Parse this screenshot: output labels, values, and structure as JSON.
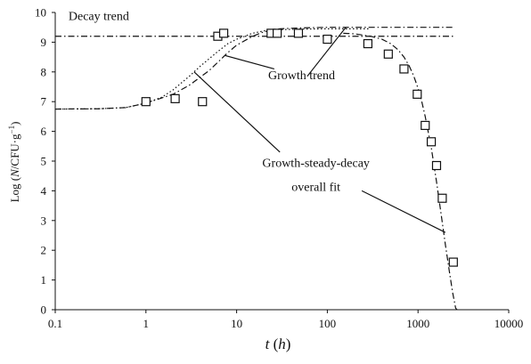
{
  "chart_data": {
    "type": "scatter",
    "x_scale": "log",
    "xlim": [
      0.1,
      10000
    ],
    "ylim": [
      0,
      10
    ],
    "grid": false,
    "x_ticks": [
      "0.1",
      "1",
      "10",
      "100",
      "1000",
      "10000"
    ],
    "y_ticks": [
      "0",
      "1",
      "2",
      "3",
      "4",
      "5",
      "6",
      "7",
      "8",
      "9",
      "10"
    ],
    "xlabel_var": "t",
    "xlabel_unit_var": "h",
    "ylabel_prefix": "Log (",
    "ylabel_var": "N",
    "ylabel_unit": "/CFU·g",
    "ylabel_exp": "−1",
    "ylabel_suffix": ")",
    "series": [
      {
        "kind": "markers",
        "marker": "open-square",
        "x": [
          1.0,
          2.1,
          4.2,
          6.2,
          7.2,
          24,
          28,
          48,
          100,
          280,
          470,
          700,
          980,
          1200,
          1400,
          1600,
          1850,
          2450
        ],
        "y": [
          7.0,
          7.1,
          7.0,
          9.2,
          9.3,
          9.3,
          9.3,
          9.3,
          9.1,
          8.95,
          8.6,
          8.1,
          7.25,
          6.2,
          5.65,
          4.85,
          3.75,
          1.6
        ]
      },
      {
        "kind": "line",
        "style": "dash-dot",
        "x": [
          0.1,
          2500
        ],
        "y": [
          9.2,
          9.2
        ]
      },
      {
        "kind": "line",
        "style": "dotted",
        "x": [
          0.1,
          0.3,
          0.6,
          1.0,
          1.5,
          2.0,
          3.0,
          4.0,
          6.0,
          8.0,
          10,
          15,
          20,
          30,
          50,
          100,
          150,
          200,
          300
        ],
        "y": [
          6.75,
          6.76,
          6.8,
          6.95,
          7.15,
          7.4,
          7.85,
          8.2,
          8.65,
          8.95,
          9.1,
          9.3,
          9.38,
          9.42,
          9.44,
          9.45,
          9.45,
          9.45,
          9.45
        ]
      },
      {
        "kind": "line",
        "style": "dash-dot",
        "x": [
          0.1,
          0.3,
          0.6,
          1.0,
          2.0,
          3.0,
          5.0,
          8.0,
          10,
          15,
          20,
          30,
          50,
          100,
          150,
          200,
          500,
          1000,
          2500
        ],
        "y": [
          6.75,
          6.76,
          6.8,
          6.95,
          7.25,
          7.55,
          8.05,
          8.65,
          8.9,
          9.2,
          9.35,
          9.45,
          9.48,
          9.5,
          9.5,
          9.5,
          9.5,
          9.5,
          9.5
        ]
      },
      {
        "kind": "line",
        "style": "dash-dot",
        "x": [
          150,
          200,
          300,
          400,
          500,
          600,
          700,
          800,
          900,
          1000,
          1100,
          1200,
          1400,
          1600,
          1800,
          2000,
          2200,
          2400,
          2600,
          2700
        ],
        "y": [
          9.3,
          9.28,
          9.2,
          9.1,
          8.95,
          8.75,
          8.5,
          8.2,
          7.85,
          7.45,
          7.0,
          6.5,
          5.45,
          4.3,
          3.2,
          2.2,
          1.35,
          0.6,
          0.05,
          0.0
        ]
      }
    ],
    "annotations": [
      {
        "name": "decay-trend",
        "text": "Decay trend",
        "at": [
          0.14,
          9.75
        ],
        "anchor": "start",
        "pointer": null
      },
      {
        "name": "growth-trend",
        "text": "Growth trend",
        "at": [
          52,
          7.75
        ],
        "anchor": "middle",
        "pointer": {
          "from": [
            26,
            8.1
          ],
          "to": [
            7.5,
            8.55
          ]
        }
      },
      {
        "name": "growth-steady-decay",
        "text": "Growth-steady-decay",
        "at": [
          75,
          4.8
        ],
        "anchor": "middle",
        "pointer": {
          "from": [
            30,
            5.3
          ],
          "to": [
            3.4,
            8.0
          ]
        }
      },
      {
        "name": "overall-fit",
        "text": "overall fit",
        "at": [
          75,
          4.0
        ],
        "anchor": "middle",
        "pointer": {
          "from": [
            240,
            4.0
          ],
          "to": [
            2000,
            2.6
          ]
        }
      },
      {
        "name": "decay-trend-pointer",
        "text": "",
        "at": null,
        "anchor": null,
        "pointer": {
          "from": [
            60,
            7.85
          ],
          "to": [
            160,
            9.5
          ]
        }
      }
    ]
  }
}
